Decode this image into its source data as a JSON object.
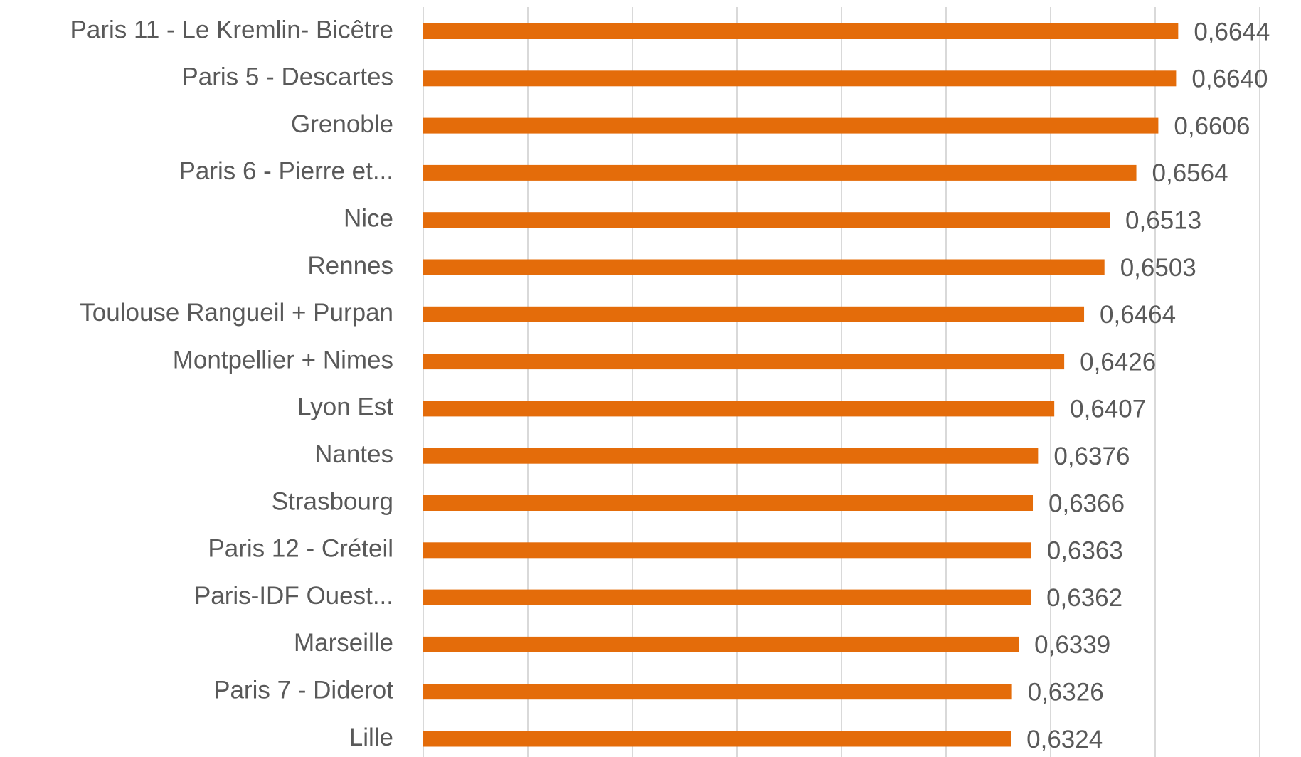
{
  "chart_data": {
    "type": "barh",
    "categories": [
      "Paris 11 - Le Kremlin- Bicêtre",
      "Paris 5 - Descartes",
      "Grenoble",
      "Paris 6 - Pierre et...",
      "Nice",
      "Rennes",
      "Toulouse Rangueil + Purpan",
      "Montpellier + Nimes",
      "Lyon Est",
      "Nantes",
      "Strasbourg",
      "Paris 12 - Créteil",
      "Paris-IDF Ouest...",
      "Marseille",
      "Paris 7 - Diderot",
      "Lille"
    ],
    "values": [
      0.6644,
      0.664,
      0.6606,
      0.6564,
      0.6513,
      0.6503,
      0.6464,
      0.6426,
      0.6407,
      0.6376,
      0.6366,
      0.6363,
      0.6362,
      0.6339,
      0.6326,
      0.6324
    ],
    "value_labels": [
      "0,6644",
      "0,6640",
      "0,6606",
      "0,6564",
      "0,6513",
      "0,6503",
      "0,6464",
      "0,6426",
      "0,6407",
      "0,6376",
      "0,6366",
      "0,6363",
      "0,6362",
      "0,6339",
      "0,6326",
      "0,6324"
    ],
    "color": "#e46c0a",
    "xlim": [
      0.52,
      0.68
    ],
    "xticks": [
      0.52,
      0.54,
      0.56,
      0.58,
      0.6,
      0.62,
      0.64,
      0.66,
      0.68
    ],
    "grid": true
  }
}
